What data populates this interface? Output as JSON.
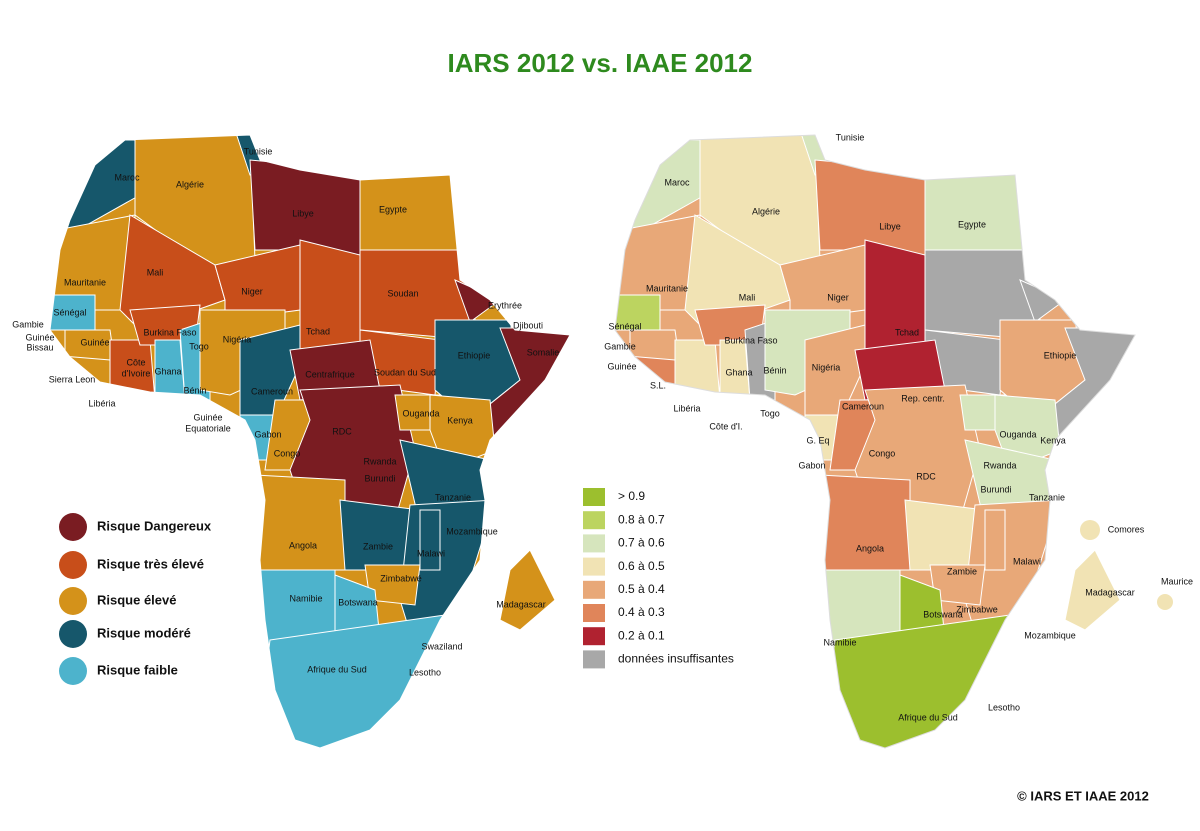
{
  "title": "IARS 2012 vs. IAAE 2012",
  "left_map": {
    "labels": [
      "Maroc",
      "Tunisie",
      "Algérie",
      "Libye",
      "Egypte",
      "Mauritanie",
      "Mali",
      "Niger",
      "Tchad",
      "Soudan",
      "Erythrée",
      "Djibouti",
      "Sénégal",
      "Gambie",
      "Guinée",
      "Bissau",
      "Guinée",
      "Sierra Leon",
      "Burkina Faso",
      "Togo",
      "Nigéria",
      "Somalie",
      "Ethiopie",
      "Côte",
      "d'Ivoire",
      "Ghana",
      "Centrafrique",
      "Soudan du Sud",
      "Libéria",
      "Bénin",
      "Cameroun",
      "Guinée",
      "Equatoriale",
      "Ouganda",
      "Kenya",
      "RDC",
      "Gabon",
      "Rwanda",
      "Congo",
      "Burundi",
      "Tanzanie",
      "Mozambique",
      "Angola",
      "Zambie",
      "Malawi",
      "Zimbabwé",
      "Madagascar",
      "Namibie",
      "Botswana",
      "Swaziland",
      "Afrique du Sud",
      "Lesotho"
    ],
    "legend": [
      {
        "label": "Risque Dangereux",
        "color": "#7a1c22"
      },
      {
        "label": "Risque très élevé",
        "color": "#c84e1a"
      },
      {
        "label": "Risque  élevé",
        "color": "#d4921a"
      },
      {
        "label": "Risque  modéré",
        "color": "#16576b"
      },
      {
        "label": "Risque  faible",
        "color": "#4db3cc"
      }
    ]
  },
  "right_map": {
    "labels": [
      "Tunisie",
      "Maroc",
      "Algérie",
      "Libye",
      "Egypte",
      "Mauritanie",
      "Mali",
      "Niger",
      "Sénégal",
      "Gambie",
      "Burkina Faso",
      "Tchad",
      "Ethiopie",
      "Guinée",
      "S.L.",
      "Ghana",
      "Bénin",
      "Nigéria",
      "Cameroun",
      "Rep. centr.",
      "Libéria",
      "Togo",
      "Côte d'I.",
      "Ouganda",
      "Kenya",
      "G. Eq",
      "Congo",
      "Gabon",
      "RDC",
      "Rwanda",
      "Burundi",
      "Tanzanie",
      "Comores",
      "Angola",
      "Malawi",
      "Zambie",
      "Madagascar",
      "Maurice",
      "Zimbabwe",
      "Botswana",
      "Mozambique",
      "Namibie",
      "Lesotho",
      "Afrique du Sud"
    ],
    "legend": [
      {
        "label": "> 0.9",
        "color": "#9cbf2e"
      },
      {
        "label": "0.8 à 0.7",
        "color": "#bcd460"
      },
      {
        "label": "0.7 à 0.6",
        "color": "#d6e5bd"
      },
      {
        "label": "0.6 à 0.5",
        "color": "#f1e3b4"
      },
      {
        "label": "0.5 à 0.4",
        "color": "#e8a878"
      },
      {
        "label": "0.4 à 0.3",
        "color": "#e0855a"
      },
      {
        "label": "0.2 à 0.1",
        "color": "#b02230"
      },
      {
        "label": "données insuffisantes",
        "color": "#a8a8a8"
      }
    ]
  },
  "copyright": "© IARS ET IAAE 2012"
}
